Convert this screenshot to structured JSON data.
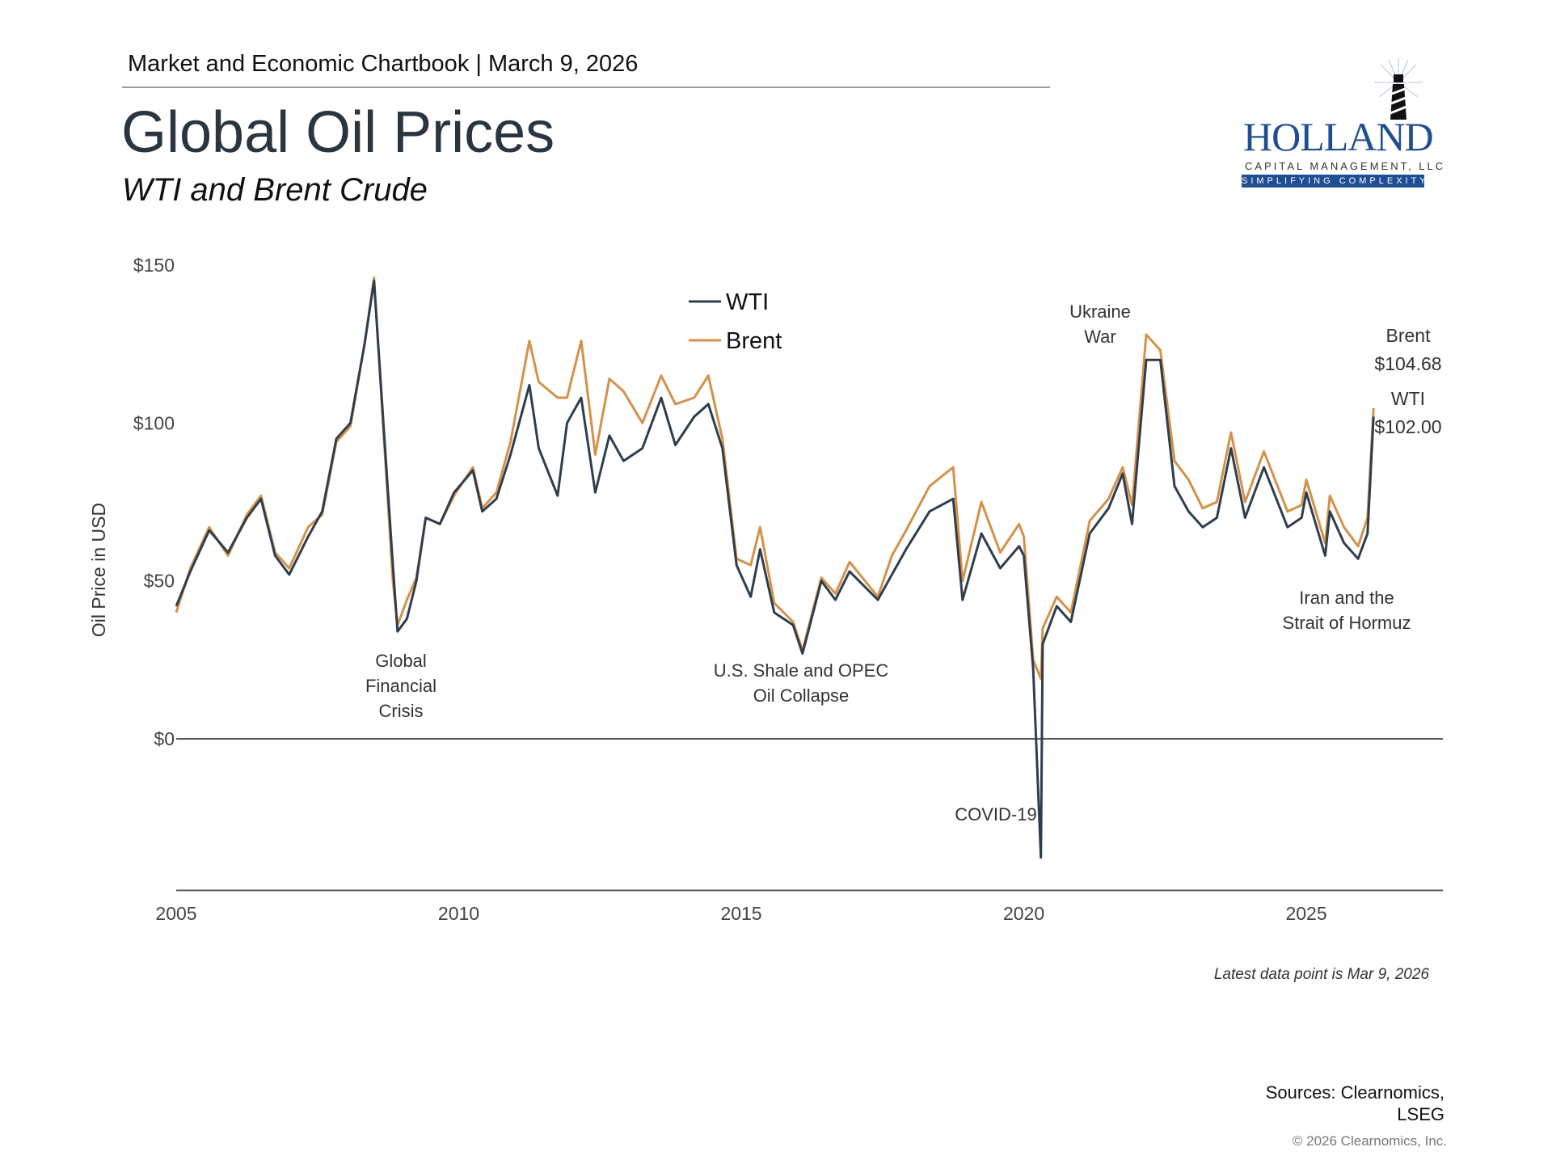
{
  "header": {
    "chartbook": "Market and Economic Chartbook | March 9, 2026",
    "title": "Global Oil Prices",
    "subtitle": "WTI and Brent Crude"
  },
  "logo": {
    "name": "HOLLAND",
    "line2": "CAPITAL MANAGEMENT, LLC",
    "tagline": "SIMPLIFYING COMPLEXITY",
    "icon": "lighthouse-icon",
    "brand_color": "#1f4e92"
  },
  "footer": {
    "note": "Latest data point is Mar 9, 2026",
    "sources_line1": "Sources: Clearnomics,",
    "sources_line2": "LSEG",
    "copyright": "© 2026 Clearnomics, Inc."
  },
  "chart_data": {
    "type": "line",
    "title": "Global Oil Prices",
    "subtitle": "WTI and Brent Crude",
    "xlabel": "",
    "ylabel": "Oil Price in USD",
    "xlim": [
      "2005-01",
      "2027-06"
    ],
    "ylim": [
      -48,
      150
    ],
    "x_ticks": [
      "2005",
      "2010",
      "2015",
      "2020",
      "2025"
    ],
    "y_ticks": [
      {
        "value": 150,
        "label": "$150"
      },
      {
        "value": 100,
        "label": "$100"
      },
      {
        "value": 50,
        "label": "$50"
      },
      {
        "value": 0,
        "label": "$0"
      }
    ],
    "grid": false,
    "legend": "top-center",
    "series": [
      {
        "name": "WTI",
        "color": "#2f3e4e",
        "points": [
          [
            "2005-01",
            42
          ],
          [
            "2005-04",
            53
          ],
          [
            "2005-08",
            66
          ],
          [
            "2005-12",
            59
          ],
          [
            "2006-04",
            70
          ],
          [
            "2006-07",
            76
          ],
          [
            "2006-10",
            58
          ],
          [
            "2007-01",
            52
          ],
          [
            "2007-05",
            64
          ],
          [
            "2007-08",
            72
          ],
          [
            "2007-11",
            95
          ],
          [
            "2008-02",
            100
          ],
          [
            "2008-05",
            125
          ],
          [
            "2008-07",
            145
          ],
          [
            "2008-09",
            100
          ],
          [
            "2008-11",
            55
          ],
          [
            "2008-12",
            34
          ],
          [
            "2009-02",
            38
          ],
          [
            "2009-04",
            50
          ],
          [
            "2009-06",
            70
          ],
          [
            "2009-09",
            68
          ],
          [
            "2009-12",
            78
          ],
          [
            "2010-04",
            85
          ],
          [
            "2010-06",
            72
          ],
          [
            "2010-09",
            76
          ],
          [
            "2010-12",
            90
          ],
          [
            "2011-04",
            112
          ],
          [
            "2011-06",
            92
          ],
          [
            "2011-10",
            77
          ],
          [
            "2011-12",
            100
          ],
          [
            "2012-03",
            108
          ],
          [
            "2012-06",
            78
          ],
          [
            "2012-09",
            96
          ],
          [
            "2012-12",
            88
          ],
          [
            "2013-04",
            92
          ],
          [
            "2013-08",
            108
          ],
          [
            "2013-11",
            93
          ],
          [
            "2014-03",
            102
          ],
          [
            "2014-06",
            106
          ],
          [
            "2014-09",
            92
          ],
          [
            "2014-12",
            55
          ],
          [
            "2015-03",
            45
          ],
          [
            "2015-05",
            60
          ],
          [
            "2015-08",
            40
          ],
          [
            "2015-12",
            36
          ],
          [
            "2016-02",
            27
          ],
          [
            "2016-06",
            50
          ],
          [
            "2016-09",
            44
          ],
          [
            "2016-12",
            53
          ],
          [
            "2017-06",
            44
          ],
          [
            "2017-09",
            52
          ],
          [
            "2017-12",
            60
          ],
          [
            "2018-05",
            72
          ],
          [
            "2018-10",
            76
          ],
          [
            "2018-12",
            44
          ],
          [
            "2019-04",
            65
          ],
          [
            "2019-08",
            54
          ],
          [
            "2019-12",
            61
          ],
          [
            "2020-01",
            58
          ],
          [
            "2020-03",
            22
          ],
          [
            "2020-04-20",
            -37.6
          ],
          [
            "2020-05",
            30
          ],
          [
            "2020-08",
            42
          ],
          [
            "2020-11",
            37
          ],
          [
            "2021-03",
            65
          ],
          [
            "2021-07",
            73
          ],
          [
            "2021-10",
            84
          ],
          [
            "2021-12",
            68
          ],
          [
            "2022-03",
            120
          ],
          [
            "2022-06",
            120
          ],
          [
            "2022-09",
            80
          ],
          [
            "2022-12",
            72
          ],
          [
            "2023-03",
            67
          ],
          [
            "2023-06",
            70
          ],
          [
            "2023-09",
            92
          ],
          [
            "2023-12",
            70
          ],
          [
            "2024-04",
            86
          ],
          [
            "2024-09",
            67
          ],
          [
            "2024-12",
            70
          ],
          [
            "2025-01",
            78
          ],
          [
            "2025-05",
            58
          ],
          [
            "2025-06",
            72
          ],
          [
            "2025-09",
            62
          ],
          [
            "2025-12",
            57
          ],
          [
            "2026-02",
            65
          ],
          [
            "2026-03-09",
            102
          ]
        ]
      },
      {
        "name": "Brent",
        "color": "#d4914a",
        "points": [
          [
            "2005-01",
            40
          ],
          [
            "2005-04",
            54
          ],
          [
            "2005-08",
            67
          ],
          [
            "2005-12",
            58
          ],
          [
            "2006-04",
            71
          ],
          [
            "2006-07",
            77
          ],
          [
            "2006-10",
            59
          ],
          [
            "2007-01",
            54
          ],
          [
            "2007-05",
            67
          ],
          [
            "2007-08",
            71
          ],
          [
            "2007-11",
            94
          ],
          [
            "2008-02",
            99
          ],
          [
            "2008-05",
            125
          ],
          [
            "2008-07",
            146
          ],
          [
            "2008-09",
            98
          ],
          [
            "2008-11",
            50
          ],
          [
            "2008-12",
            36
          ],
          [
            "2009-02",
            44
          ],
          [
            "2009-04",
            51
          ],
          [
            "2009-06",
            70
          ],
          [
            "2009-09",
            68
          ],
          [
            "2009-12",
            77
          ],
          [
            "2010-04",
            86
          ],
          [
            "2010-06",
            73
          ],
          [
            "2010-09",
            78
          ],
          [
            "2010-12",
            94
          ],
          [
            "2011-04",
            126
          ],
          [
            "2011-06",
            113
          ],
          [
            "2011-10",
            108
          ],
          [
            "2011-12",
            108
          ],
          [
            "2012-03",
            126
          ],
          [
            "2012-06",
            90
          ],
          [
            "2012-09",
            114
          ],
          [
            "2012-12",
            110
          ],
          [
            "2013-04",
            100
          ],
          [
            "2013-08",
            115
          ],
          [
            "2013-11",
            106
          ],
          [
            "2014-03",
            108
          ],
          [
            "2014-06",
            115
          ],
          [
            "2014-09",
            95
          ],
          [
            "2014-12",
            57
          ],
          [
            "2015-03",
            55
          ],
          [
            "2015-05",
            67
          ],
          [
            "2015-08",
            43
          ],
          [
            "2015-12",
            37
          ],
          [
            "2016-02",
            28
          ],
          [
            "2016-06",
            51
          ],
          [
            "2016-09",
            46
          ],
          [
            "2016-12",
            56
          ],
          [
            "2017-06",
            45
          ],
          [
            "2017-09",
            58
          ],
          [
            "2017-12",
            66
          ],
          [
            "2018-05",
            80
          ],
          [
            "2018-10",
            86
          ],
          [
            "2018-12",
            50
          ],
          [
            "2019-04",
            75
          ],
          [
            "2019-08",
            59
          ],
          [
            "2019-12",
            68
          ],
          [
            "2020-01",
            64
          ],
          [
            "2020-03",
            25
          ],
          [
            "2020-04-20",
            19
          ],
          [
            "2020-05",
            35
          ],
          [
            "2020-08",
            45
          ],
          [
            "2020-11",
            40
          ],
          [
            "2021-03",
            69
          ],
          [
            "2021-07",
            76
          ],
          [
            "2021-10",
            86
          ],
          [
            "2021-12",
            74
          ],
          [
            "2022-03",
            128
          ],
          [
            "2022-06",
            123
          ],
          [
            "2022-09",
            88
          ],
          [
            "2022-12",
            82
          ],
          [
            "2023-03",
            73
          ],
          [
            "2023-06",
            75
          ],
          [
            "2023-09",
            97
          ],
          [
            "2023-12",
            75
          ],
          [
            "2024-04",
            91
          ],
          [
            "2024-09",
            72
          ],
          [
            "2024-12",
            74
          ],
          [
            "2025-01",
            82
          ],
          [
            "2025-05",
            62
          ],
          [
            "2025-06",
            77
          ],
          [
            "2025-09",
            67
          ],
          [
            "2025-12",
            61
          ],
          [
            "2026-02",
            70
          ],
          [
            "2026-03-09",
            104.68
          ]
        ]
      }
    ],
    "annotations": [
      {
        "lines": [
          "Global",
          "Financial",
          "Crisis"
        ]
      },
      {
        "lines": [
          "U.S. Shale and OPEC",
          "Oil Collapse"
        ]
      },
      {
        "lines": [
          "COVID-19"
        ]
      },
      {
        "lines": [
          "Ukraine",
          "War"
        ]
      },
      {
        "lines": [
          "Iran and the",
          "Strait of Hormuz"
        ]
      }
    ],
    "end_labels": [
      {
        "series": "Brent",
        "label": "Brent",
        "value": "$104.68"
      },
      {
        "series": "WTI",
        "label": "WTI",
        "value": "$102.00"
      }
    ]
  }
}
